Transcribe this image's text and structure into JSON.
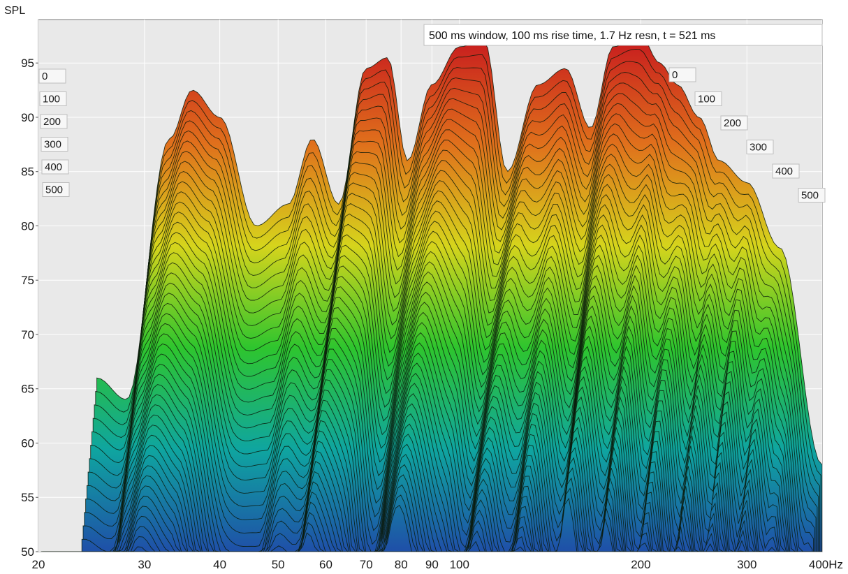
{
  "chart_data": {
    "type": "waterfall",
    "header": "500 ms window, 100 ms rise time,  1.7 Hz resn, t = 521 ms",
    "ylabel": "SPL",
    "x_scale": "log",
    "xlim": [
      20,
      400
    ],
    "ylim": [
      50,
      99
    ],
    "x_ticks": [
      {
        "value": 20,
        "label": "20"
      },
      {
        "value": 30,
        "label": "30"
      },
      {
        "value": 40,
        "label": "40"
      },
      {
        "value": 50,
        "label": "50"
      },
      {
        "value": 60,
        "label": "60"
      },
      {
        "value": 70,
        "label": "70"
      },
      {
        "value": 80,
        "label": "80"
      },
      {
        "value": 90,
        "label": "90"
      },
      {
        "value": 100,
        "label": "100"
      },
      {
        "value": 200,
        "label": "200"
      },
      {
        "value": 300,
        "label": "300"
      },
      {
        "value": 400,
        "label": "400Hz"
      }
    ],
    "y_ticks": [
      50,
      55,
      60,
      65,
      70,
      75,
      80,
      85,
      90,
      95
    ],
    "time_axis_labels_left": [
      "0",
      "100",
      "200",
      "300",
      "400",
      "500"
    ],
    "time_axis_labels_right": [
      "0",
      "100",
      "200",
      "300",
      "400",
      "500"
    ],
    "time_unit": "ms",
    "time_slices_ms": [
      0,
      100,
      200,
      300,
      400,
      500
    ],
    "frequencies_hz": [
      25,
      28,
      33,
      36,
      40,
      46,
      52,
      57,
      63,
      70,
      76,
      82,
      90,
      100,
      110,
      120,
      135,
      150,
      165,
      180,
      200,
      215,
      230,
      250,
      270,
      300,
      340,
      400
    ],
    "spl_t0_db": [
      66,
      64,
      88,
      92.5,
      90,
      80,
      82,
      88,
      82,
      94.5,
      95.5,
      86,
      93,
      96.5,
      97,
      85,
      93,
      94.5,
      89,
      96.5,
      97.5,
      95,
      93,
      90,
      86,
      84,
      78,
      58
    ],
    "colormap": [
      "#1f4fa8",
      "#0fa5a0",
      "#2ec52e",
      "#d6d41c",
      "#e0701c",
      "#c81e1e"
    ],
    "background": "#e9e9e9",
    "grid_color": "#ffffff"
  }
}
